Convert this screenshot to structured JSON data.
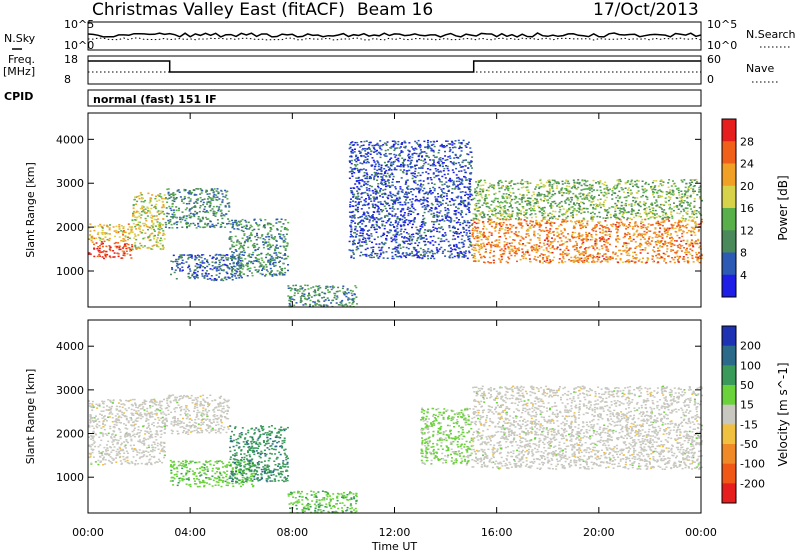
{
  "header": {
    "title": "Christmas Valley East (fitACF)",
    "beam": "Beam 16",
    "date": "17/Oct/2013"
  },
  "top_panels": {
    "noise_label": "N.Sky",
    "noise_right_label": "N.Search",
    "noise_ticks_left": [
      "10^5",
      "10^0"
    ],
    "noise_ticks_right": [
      "10^5",
      "10^0"
    ],
    "freq_label_line1": "Freq.",
    "freq_label_line2": "[MHz]",
    "freq_ticks": [
      "18",
      "8"
    ],
    "nave_label": "Nave",
    "nave_ticks": [
      "60",
      "0"
    ],
    "cpid_label": "CPID",
    "cpid_text": "normal (fast) 151 IF"
  },
  "chart_data": [
    {
      "type": "heatmap",
      "title": "",
      "xlabel": "Time UT",
      "ylabel": "Slant Range [km]",
      "xlim": [
        "00:00",
        "24:00"
      ],
      "ylim": [
        180,
        4600
      ],
      "x_ticks": [
        "00:00",
        "04:00",
        "08:00",
        "12:00",
        "16:00",
        "20:00",
        "00:00"
      ],
      "y_ticks": [
        "1000",
        "2000",
        "3000",
        "4000"
      ],
      "colorbar": {
        "label": "Power [dB]",
        "ticks": [
          "4",
          "8",
          "12",
          "16",
          "20",
          "24",
          "28"
        ],
        "range": [
          0,
          32
        ],
        "colors": [
          "#1e1ee6",
          "#2c5ab4",
          "#4a8a5a",
          "#59b04a",
          "#d6d24a",
          "#f0a024",
          "#f06018",
          "#e61e1e"
        ]
      },
      "scatter_regions": [
        {
          "t0": 0.0,
          "t1": 1.7,
          "r0": 1300,
          "r1": 1700,
          "value": 28
        },
        {
          "t0": 0.0,
          "t1": 1.7,
          "r0": 1700,
          "r1": 2100,
          "value": 20
        },
        {
          "t0": 1.7,
          "t1": 3.0,
          "r0": 1500,
          "r1": 2800,
          "value": 18
        },
        {
          "t0": 3.0,
          "t1": 5.5,
          "r0": 2000,
          "r1": 2900,
          "value": 10
        },
        {
          "t0": 3.2,
          "t1": 6.0,
          "r0": 800,
          "r1": 1400,
          "value": 7
        },
        {
          "t0": 5.5,
          "t1": 7.8,
          "r0": 900,
          "r1": 2200,
          "value": 10
        },
        {
          "t0": 7.8,
          "t1": 10.5,
          "r0": 200,
          "r1": 700,
          "value": 10
        },
        {
          "t0": 10.2,
          "t1": 15.0,
          "r0": 1300,
          "r1": 4000,
          "value": 5
        },
        {
          "t0": 15.0,
          "t1": 24.0,
          "r0": 1200,
          "r1": 2200,
          "value": 24
        },
        {
          "t0": 15.0,
          "t1": 24.0,
          "r0": 2200,
          "r1": 3100,
          "value": 14
        }
      ]
    },
    {
      "type": "heatmap",
      "title": "",
      "xlabel": "Time UT",
      "ylabel": "Slant Range [km]",
      "xlim": [
        "00:00",
        "24:00"
      ],
      "ylim": [
        180,
        4600
      ],
      "x_ticks": [
        "00:00",
        "04:00",
        "08:00",
        "12:00",
        "16:00",
        "20:00",
        "00:00"
      ],
      "y_ticks": [
        "1000",
        "2000",
        "3000",
        "4000"
      ],
      "colorbar": {
        "label": "Velocity [m s^-1]",
        "ticks": [
          "200",
          "100",
          "50",
          "15",
          "-15",
          "-50",
          "-100",
          "-200"
        ],
        "range": [
          -250,
          250
        ],
        "colors": [
          "#1e32b4",
          "#2c6a8a",
          "#3a9a5a",
          "#6ad23a",
          "#c8c8c0",
          "#f0c040",
          "#f08a28",
          "#f05818",
          "#e61e1e"
        ]
      },
      "scatter_regions": [
        {
          "t0": 0.0,
          "t1": 3.0,
          "r0": 1300,
          "r1": 2800,
          "value": 0
        },
        {
          "t0": 3.0,
          "t1": 5.5,
          "r0": 2000,
          "r1": 2900,
          "value": 0
        },
        {
          "t0": 3.2,
          "t1": 6.5,
          "r0": 800,
          "r1": 1400,
          "value": 60
        },
        {
          "t0": 5.5,
          "t1": 7.8,
          "r0": 900,
          "r1": 2200,
          "value": 120
        },
        {
          "t0": 7.8,
          "t1": 10.5,
          "r0": 200,
          "r1": 700,
          "value": 70
        },
        {
          "t0": 13.0,
          "t1": 15.0,
          "r0": 1300,
          "r1": 2600,
          "value": 40
        },
        {
          "t0": 15.0,
          "t1": 24.0,
          "r0": 1200,
          "r1": 3100,
          "value": 0
        }
      ]
    }
  ]
}
